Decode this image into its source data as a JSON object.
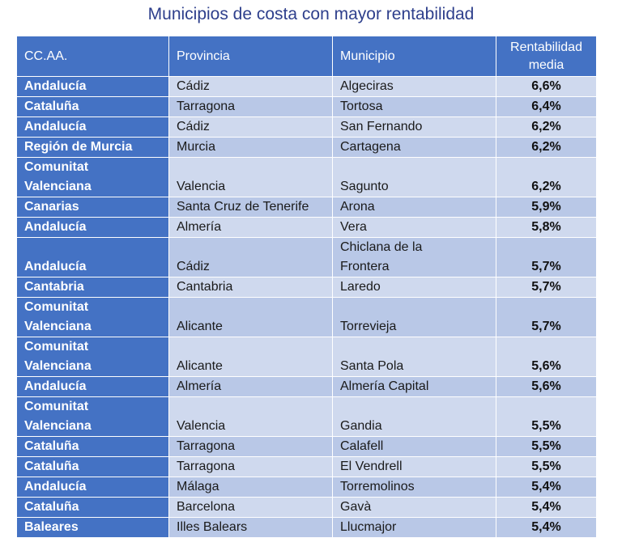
{
  "title": "Municipios de costa con mayor rentabilidad",
  "headers": [
    "CC.AA.",
    "Provincia",
    "Municipio",
    "Rentabilidad\nmedia"
  ],
  "rows": [
    {
      "ccaa": "Andalucía",
      "provincia": "Cádiz",
      "municipio": "Algeciras",
      "rentabilidad": "6,6%"
    },
    {
      "ccaa": "Cataluña",
      "provincia": "Tarragona",
      "municipio": "Tortosa",
      "rentabilidad": "6,4%"
    },
    {
      "ccaa": "Andalucía",
      "provincia": "Cádiz",
      "municipio": "San Fernando",
      "rentabilidad": "6,2%"
    },
    {
      "ccaa": "Región de Murcia",
      "provincia": "Murcia",
      "municipio": "Cartagena",
      "rentabilidad": "6,2%"
    },
    {
      "ccaa": "Comunitat\nValenciana",
      "provincia": "Valencia",
      "municipio": "Sagunto",
      "rentabilidad": "6,2%"
    },
    {
      "ccaa": "Canarias",
      "provincia": "Santa Cruz de Tenerife",
      "municipio": "Arona",
      "rentabilidad": "5,9%"
    },
    {
      "ccaa": "Andalucía",
      "provincia": "Almería",
      "municipio": "Vera",
      "rentabilidad": "5,8%"
    },
    {
      "ccaa": "Andalucía",
      "provincia": "Cádiz",
      "municipio": "Chiclana de la\nFrontera",
      "rentabilidad": "5,7%"
    },
    {
      "ccaa": "Cantabria",
      "provincia": "Cantabria",
      "municipio": "Laredo",
      "rentabilidad": "5,7%"
    },
    {
      "ccaa": "Comunitat\nValenciana",
      "provincia": "Alicante",
      "municipio": "Torrevieja",
      "rentabilidad": "5,7%"
    },
    {
      "ccaa": "Comunitat\nValenciana",
      "provincia": "Alicante",
      "municipio": "Santa Pola",
      "rentabilidad": "5,6%"
    },
    {
      "ccaa": "Andalucía",
      "provincia": "Almería",
      "municipio": " Almería Capital",
      "rentabilidad": "5,6%"
    },
    {
      "ccaa": "Comunitat\nValenciana",
      "provincia": "Valencia",
      "municipio": "Gandia",
      "rentabilidad": "5,5%"
    },
    {
      "ccaa": "Cataluña",
      "provincia": "Tarragona",
      "municipio": "Calafell",
      "rentabilidad": "5,5%"
    },
    {
      "ccaa": "Cataluña",
      "provincia": "Tarragona",
      "municipio": "El Vendrell",
      "rentabilidad": "5,5%"
    },
    {
      "ccaa": "Andalucía",
      "provincia": "Málaga",
      "municipio": "Torremolinos",
      "rentabilidad": "5,4%"
    },
    {
      "ccaa": "Cataluña",
      "provincia": "Barcelona",
      "municipio": "Gavà",
      "rentabilidad": "5,4%"
    },
    {
      "ccaa": "Baleares",
      "provincia": "Illes Balears",
      "municipio": "Llucmajor",
      "rentabilidad": "5,4%"
    }
  ]
}
